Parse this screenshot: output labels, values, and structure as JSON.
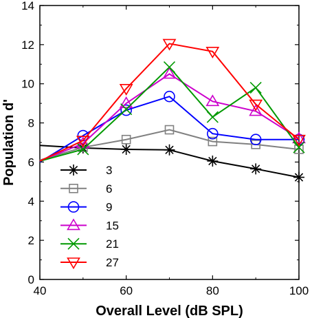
{
  "chart_data": {
    "type": "line",
    "title": "",
    "xlabel": "Overall Level (dB SPL)",
    "ylabel": "Population d'",
    "xlim": [
      40,
      100
    ],
    "ylim": [
      0,
      14
    ],
    "xticks": [
      40,
      60,
      80,
      100
    ],
    "yticks": [
      0,
      2,
      4,
      6,
      8,
      10,
      12,
      14
    ],
    "grid": false,
    "legend": "lower-left",
    "x": [
      40,
      50,
      60,
      70,
      80,
      90,
      100
    ],
    "series": [
      {
        "name": "3",
        "color": "#000000",
        "marker": "asterisk",
        "values": [
          6.85,
          6.72,
          6.65,
          6.62,
          6.05,
          5.65,
          5.22
        ]
      },
      {
        "name": "6",
        "color": "#808080",
        "marker": "square",
        "values": [
          6.1,
          6.75,
          7.15,
          7.65,
          7.05,
          6.9,
          6.65
        ]
      },
      {
        "name": "9",
        "color": "#0000ff",
        "marker": "circle",
        "values": [
          6.0,
          7.35,
          8.65,
          9.35,
          7.45,
          7.15,
          7.15
        ]
      },
      {
        "name": "15",
        "color": "#cc00cc",
        "marker": "triangle-up",
        "values": [
          6.05,
          6.95,
          9.0,
          10.5,
          9.1,
          8.6,
          7.2
        ]
      },
      {
        "name": "21",
        "color": "#009900",
        "marker": "x",
        "values": [
          6.05,
          6.65,
          8.7,
          10.85,
          8.3,
          9.8,
          6.75
        ]
      },
      {
        "name": "27",
        "color": "#ff0000",
        "marker": "triangle-down",
        "values": [
          6.05,
          7.1,
          9.75,
          12.05,
          11.65,
          8.95,
          7.15
        ]
      }
    ]
  }
}
